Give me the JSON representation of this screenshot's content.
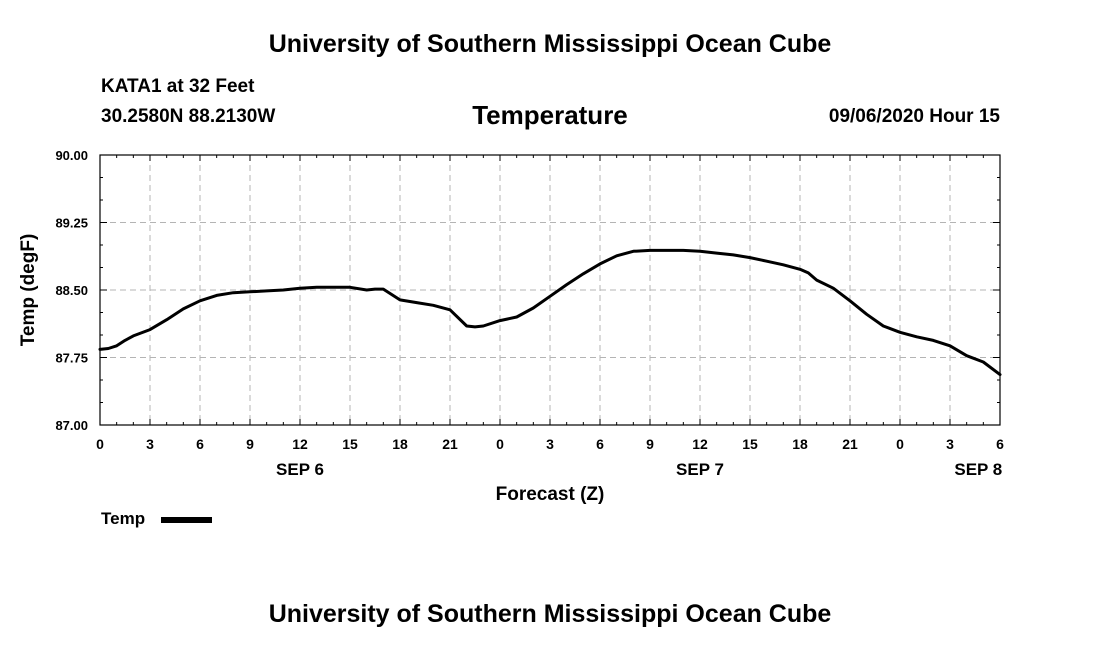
{
  "header": {
    "org_title": "University of Southern Mississippi Ocean Cube",
    "station": "KATA1 at 32 Feet",
    "coordinates": "30.2580N 88.2130W",
    "chart_title": "Temperature",
    "timestamp": "09/06/2020 Hour 15"
  },
  "footer": {
    "org_title": "University of Southern Mississippi Ocean Cube"
  },
  "legend": {
    "label": "Temp"
  },
  "chart_data": {
    "type": "line",
    "title": "Temperature",
    "xlabel": "Forecast (Z)",
    "ylabel": "Temp (degF)",
    "ylim": [
      87.0,
      90.0
    ],
    "xlim": [
      0,
      54
    ],
    "x_unit": "hours from SEP 6 00Z",
    "yticks": [
      "87.00",
      "87.75",
      "88.50",
      "89.25",
      "90.00"
    ],
    "xticks": [
      {
        "x": 0,
        "label": "0"
      },
      {
        "x": 3,
        "label": "3"
      },
      {
        "x": 6,
        "label": "6"
      },
      {
        "x": 9,
        "label": "9"
      },
      {
        "x": 12,
        "label": "12"
      },
      {
        "x": 15,
        "label": "15"
      },
      {
        "x": 18,
        "label": "18"
      },
      {
        "x": 21,
        "label": "21"
      },
      {
        "x": 24,
        "label": "0"
      },
      {
        "x": 27,
        "label": "3"
      },
      {
        "x": 30,
        "label": "6"
      },
      {
        "x": 33,
        "label": "9"
      },
      {
        "x": 36,
        "label": "12"
      },
      {
        "x": 39,
        "label": "15"
      },
      {
        "x": 42,
        "label": "18"
      },
      {
        "x": 45,
        "label": "21"
      },
      {
        "x": 48,
        "label": "0"
      },
      {
        "x": 51,
        "label": "3"
      },
      {
        "x": 54,
        "label": "6"
      }
    ],
    "day_labels": [
      {
        "x": 12,
        "label": "SEP 6"
      },
      {
        "x": 36,
        "label": "SEP 7"
      },
      {
        "x": 52.7,
        "label": "SEP 8"
      }
    ],
    "grid": true,
    "legend_position": "bottom-left",
    "series": [
      {
        "name": "Temp",
        "color": "#000000",
        "x": [
          0,
          0.5,
          1,
          1.5,
          2,
          3,
          4,
          5,
          6,
          7,
          8,
          9,
          10,
          11,
          12,
          13,
          14,
          15,
          16,
          16.5,
          17,
          18,
          19,
          20,
          21,
          22,
          22.5,
          23,
          24,
          25,
          26,
          27,
          28,
          29,
          30,
          31,
          32,
          33,
          34,
          35,
          36,
          37,
          38,
          39,
          40,
          41,
          42,
          42.5,
          43,
          44,
          45,
          46,
          47,
          48,
          49,
          50,
          51,
          52,
          53,
          54
        ],
        "y": [
          87.84,
          87.85,
          87.88,
          87.94,
          87.99,
          88.06,
          88.17,
          88.29,
          88.38,
          88.44,
          88.47,
          88.48,
          88.49,
          88.5,
          88.52,
          88.53,
          88.53,
          88.53,
          88.5,
          88.51,
          88.51,
          88.39,
          88.36,
          88.33,
          88.28,
          88.1,
          88.09,
          88.1,
          88.16,
          88.2,
          88.3,
          88.43,
          88.56,
          88.68,
          88.79,
          88.88,
          88.93,
          88.94,
          88.94,
          88.94,
          88.93,
          88.91,
          88.89,
          88.86,
          88.82,
          88.78,
          88.73,
          88.69,
          88.61,
          88.52,
          88.38,
          88.23,
          88.1,
          88.03,
          87.98,
          87.94,
          87.88,
          87.77,
          87.7,
          87.56
        ]
      }
    ]
  }
}
